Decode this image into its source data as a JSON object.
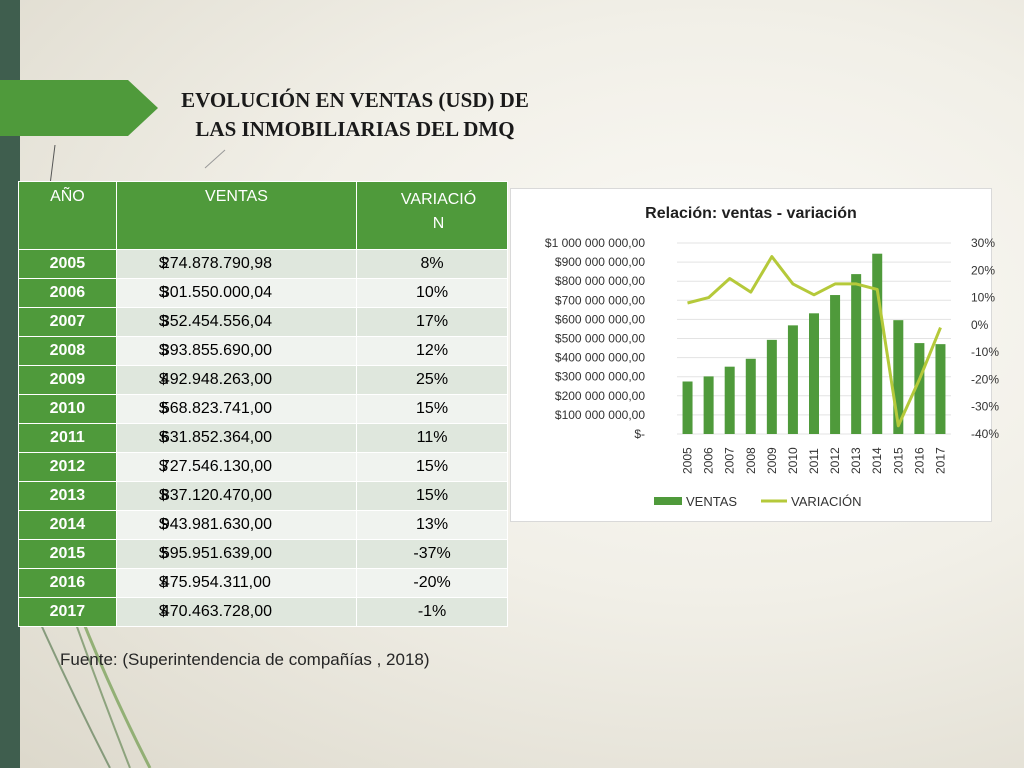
{
  "slide": {
    "title_line1": "EVOLUCIÓN EN VENTAS (USD) DE",
    "title_line2": "LAS INMOBILIARIAS DEL DMQ",
    "source": "Fuente: (Superintendencia de compañías , 2018)",
    "accent_color": "#4f9a3b",
    "bar_color": "#3f5e4e"
  },
  "table": {
    "headers": {
      "year": "AÑO",
      "sales": "VENTAS",
      "variation_line1": "VARIACIÓ",
      "variation_line2": "N"
    },
    "currency": "$",
    "rows": [
      {
        "year": "2005",
        "sales": "274.878.790,98",
        "variation": "8%"
      },
      {
        "year": "2006",
        "sales": "301.550.000,04",
        "variation": "10%"
      },
      {
        "year": "2007",
        "sales": "352.454.556,04",
        "variation": "17%"
      },
      {
        "year": "2008",
        "sales": "393.855.690,00",
        "variation": "12%"
      },
      {
        "year": "2009",
        "sales": "492.948.263,00",
        "variation": "25%"
      },
      {
        "year": "2010",
        "sales": "568.823.741,00",
        "variation": "15%"
      },
      {
        "year": "2011",
        "sales": "631.852.364,00",
        "variation": "11%"
      },
      {
        "year": "2012",
        "sales": "727.546.130,00",
        "variation": "15%"
      },
      {
        "year": "2013",
        "sales": "837.120.470,00",
        "variation": "15%"
      },
      {
        "year": "2014",
        "sales": "943.981.630,00",
        "variation": "13%"
      },
      {
        "year": "2015",
        "sales": "595.951.639,00",
        "variation": "-37%"
      },
      {
        "year": "2016",
        "sales": "475.954.311,00",
        "variation": "-20%"
      },
      {
        "year": "2017",
        "sales": "470.463.728,00",
        "variation": "-1%"
      }
    ]
  },
  "chart_data": {
    "type": "bar",
    "title": "Relación: ventas - variación",
    "categories": [
      "2005",
      "2006",
      "2007",
      "2008",
      "2009",
      "2010",
      "2011",
      "2012",
      "2013",
      "2014",
      "2015",
      "2016",
      "2017"
    ],
    "series": [
      {
        "name": "VENTAS",
        "type": "bar",
        "axis": "left",
        "color": "#4f9a3b",
        "values": [
          274878790.98,
          301550000.04,
          352454556.04,
          393855690.0,
          492948263.0,
          568823741.0,
          631852364.0,
          727546130.0,
          837120470.0,
          943981630.0,
          595951639.0,
          475954311.0,
          470463728.0
        ]
      },
      {
        "name": "VARIACIÓN",
        "type": "line",
        "axis": "right",
        "color": "#b5c93a",
        "values": [
          8,
          10,
          17,
          12,
          25,
          15,
          11,
          15,
          15,
          13,
          -37,
          -20,
          -1
        ]
      }
    ],
    "y_left": {
      "min": 0,
      "max": 1000000000,
      "tick_labels": [
        "$-",
        "$100 000 000,00",
        "$200 000 000,00",
        "$300 000 000,00",
        "$400 000 000,00",
        "$500 000 000,00",
        "$600 000 000,00",
        "$700 000 000,00",
        "$800 000 000,00",
        "$900 000 000,00",
        "$1 000 000 000,00"
      ]
    },
    "y_right": {
      "min": -40,
      "max": 30,
      "tick_labels": [
        "-40%",
        "-30%",
        "-20%",
        "-10%",
        "0%",
        "10%",
        "20%",
        "30%"
      ]
    },
    "grid": true,
    "legend_position": "bottom"
  }
}
